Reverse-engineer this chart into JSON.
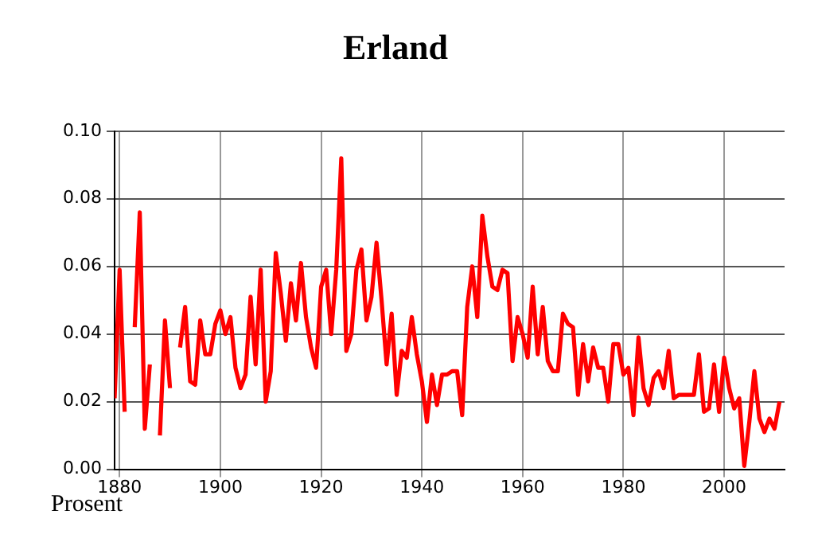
{
  "chart_data": {
    "type": "line",
    "title": "Erland",
    "annotations": [
      "Prosent"
    ],
    "x": [
      1879,
      1880,
      1881,
      1882,
      1883,
      1884,
      1885,
      1886,
      1887,
      1888,
      1889,
      1890,
      1891,
      1892,
      1893,
      1894,
      1895,
      1896,
      1897,
      1898,
      1899,
      1900,
      1901,
      1902,
      1903,
      1904,
      1905,
      1906,
      1907,
      1908,
      1909,
      1910,
      1911,
      1912,
      1913,
      1914,
      1915,
      1916,
      1917,
      1918,
      1919,
      1920,
      1921,
      1922,
      1923,
      1924,
      1925,
      1926,
      1927,
      1928,
      1929,
      1930,
      1931,
      1932,
      1933,
      1934,
      1935,
      1936,
      1937,
      1938,
      1939,
      1940,
      1941,
      1942,
      1943,
      1944,
      1945,
      1946,
      1947,
      1948,
      1949,
      1950,
      1951,
      1952,
      1953,
      1954,
      1955,
      1956,
      1957,
      1958,
      1959,
      1960,
      1961,
      1962,
      1963,
      1964,
      1965,
      1966,
      1967,
      1968,
      1969,
      1970,
      1971,
      1972,
      1973,
      1974,
      1975,
      1976,
      1977,
      1978,
      1979,
      1980,
      1981,
      1982,
      1983,
      1984,
      1985,
      1986,
      1987,
      1988,
      1989,
      1990,
      1991,
      1992,
      1993,
      1994,
      1995,
      1996,
      1997,
      1998,
      1999,
      2000,
      2001,
      2002,
      2003,
      2004,
      2005,
      2006,
      2007,
      2008,
      2009,
      2010,
      2011
    ],
    "series": [
      {
        "color": "#ff0000",
        "values": [
          0.021,
          0.059,
          0.017,
          null,
          0.042,
          0.076,
          0.012,
          0.031,
          null,
          0.01,
          0.044,
          0.024,
          null,
          0.036,
          0.048,
          0.026,
          0.025,
          0.044,
          0.034,
          0.034,
          0.043,
          0.047,
          0.04,
          0.045,
          0.03,
          0.024,
          0.028,
          0.051,
          0.031,
          0.059,
          0.02,
          0.029,
          0.064,
          0.052,
          0.038,
          0.055,
          0.044,
          0.061,
          0.045,
          0.036,
          0.03,
          0.054,
          0.059,
          0.04,
          0.059,
          0.092,
          0.035,
          0.04,
          0.059,
          0.065,
          0.044,
          0.051,
          0.067,
          0.05,
          0.031,
          0.046,
          0.022,
          0.035,
          0.033,
          0.045,
          0.034,
          0.026,
          0.014,
          0.028,
          0.019,
          0.028,
          0.028,
          0.029,
          0.029,
          0.016,
          0.048,
          0.06,
          0.045,
          0.075,
          0.063,
          0.054,
          0.053,
          0.059,
          0.058,
          0.032,
          0.045,
          0.04,
          0.033,
          0.054,
          0.034,
          0.048,
          0.032,
          0.029,
          0.029,
          0.046,
          0.043,
          0.042,
          0.022,
          0.037,
          0.026,
          0.036,
          0.03,
          0.03,
          0.02,
          0.037,
          0.037,
          0.028,
          0.03,
          0.016,
          0.039,
          0.024,
          0.019,
          0.027,
          0.029,
          0.024,
          0.035,
          0.021,
          0.022,
          0.022,
          0.022,
          0.022,
          0.034,
          0.017,
          0.018,
          0.031,
          0.017,
          0.033,
          0.024,
          0.018,
          0.021,
          0.001,
          0.014,
          0.029,
          0.015,
          0.011,
          0.015,
          0.012,
          0.02
        ]
      }
    ],
    "xlim": [
      1879,
      2012
    ],
    "xticks": [
      1880,
      1900,
      1920,
      1940,
      1960,
      1980,
      2000
    ],
    "ylim": [
      0,
      0.1
    ],
    "yticks": [
      {
        "value": 0,
        "label": "0.00"
      },
      {
        "value": 0.02,
        "label": "0.02"
      },
      {
        "value": 0.04,
        "label": "0.04"
      },
      {
        "value": 0.06,
        "label": "0.06"
      },
      {
        "value": 0.08,
        "label": "0.08"
      },
      {
        "value": 0.1,
        "label": "0.10"
      }
    ],
    "grid": true,
    "legend": false,
    "marker": "none",
    "line_style": "solid"
  }
}
